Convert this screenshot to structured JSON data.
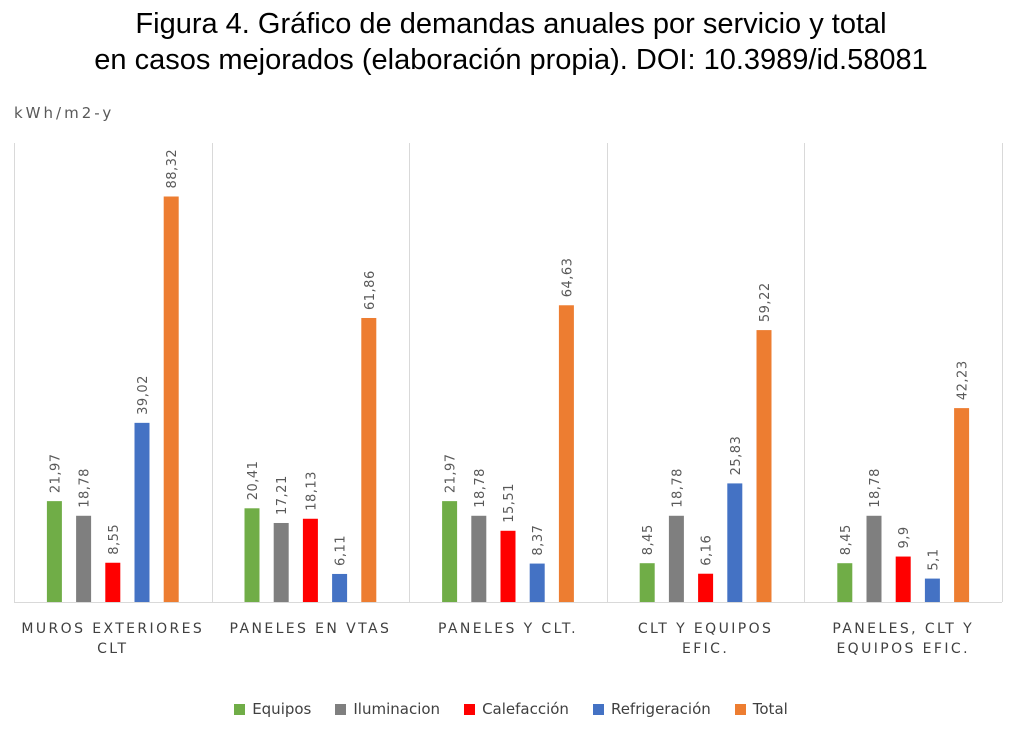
{
  "title_line1": "Figura 4. Gráfico de demandas anuales por servicio y total",
  "title_line2": "en casos mejorados (elaboración propia). DOI: 10.3989/id.58081",
  "chart_data": {
    "type": "bar",
    "ylabel": "kWh/m2-y",
    "ylim": [
      0,
      100
    ],
    "grid": false,
    "legend_position": "bottom",
    "categories": [
      [
        "MUROS EXTERIORES",
        "CLT"
      ],
      [
        "PANELES EN VTAS"
      ],
      [
        "PANELES  Y CLT."
      ],
      [
        "CLT Y EQUIPOS",
        "EFIC."
      ],
      [
        "PANELES, CLT Y",
        "EQUIPOS EFIC."
      ]
    ],
    "series": [
      {
        "name": "Equipos",
        "color": "#70ad47",
        "values": [
          21.97,
          20.41,
          21.97,
          8.45,
          8.45
        ],
        "labels": [
          "21,97",
          "20,41",
          "21,97",
          "8,45",
          "8,45"
        ]
      },
      {
        "name": "Iluminacion",
        "color": "#7f7f7f",
        "values": [
          18.78,
          17.21,
          18.78,
          18.78,
          18.78
        ],
        "labels": [
          "18,78",
          "17,21",
          "18,78",
          "18,78",
          "18,78"
        ]
      },
      {
        "name": "Calefacción",
        "color": "#ff0000",
        "values": [
          8.55,
          18.13,
          15.51,
          6.16,
          9.9
        ],
        "labels": [
          "8,55",
          "18,13",
          "15,51",
          "6,16",
          "9,9"
        ]
      },
      {
        "name": "Refrigeración",
        "color": "#4472c4",
        "values": [
          39.02,
          6.11,
          8.37,
          25.83,
          5.1
        ],
        "labels": [
          "39,02",
          "6,11",
          "8,37",
          "25,83",
          "5,1"
        ]
      },
      {
        "name": "Total",
        "color": "#ed7d31",
        "values": [
          88.32,
          61.86,
          64.63,
          59.22,
          42.23
        ],
        "labels": [
          "88,32",
          "61,86",
          "64,63",
          "59,22",
          "42,23"
        ]
      }
    ]
  }
}
